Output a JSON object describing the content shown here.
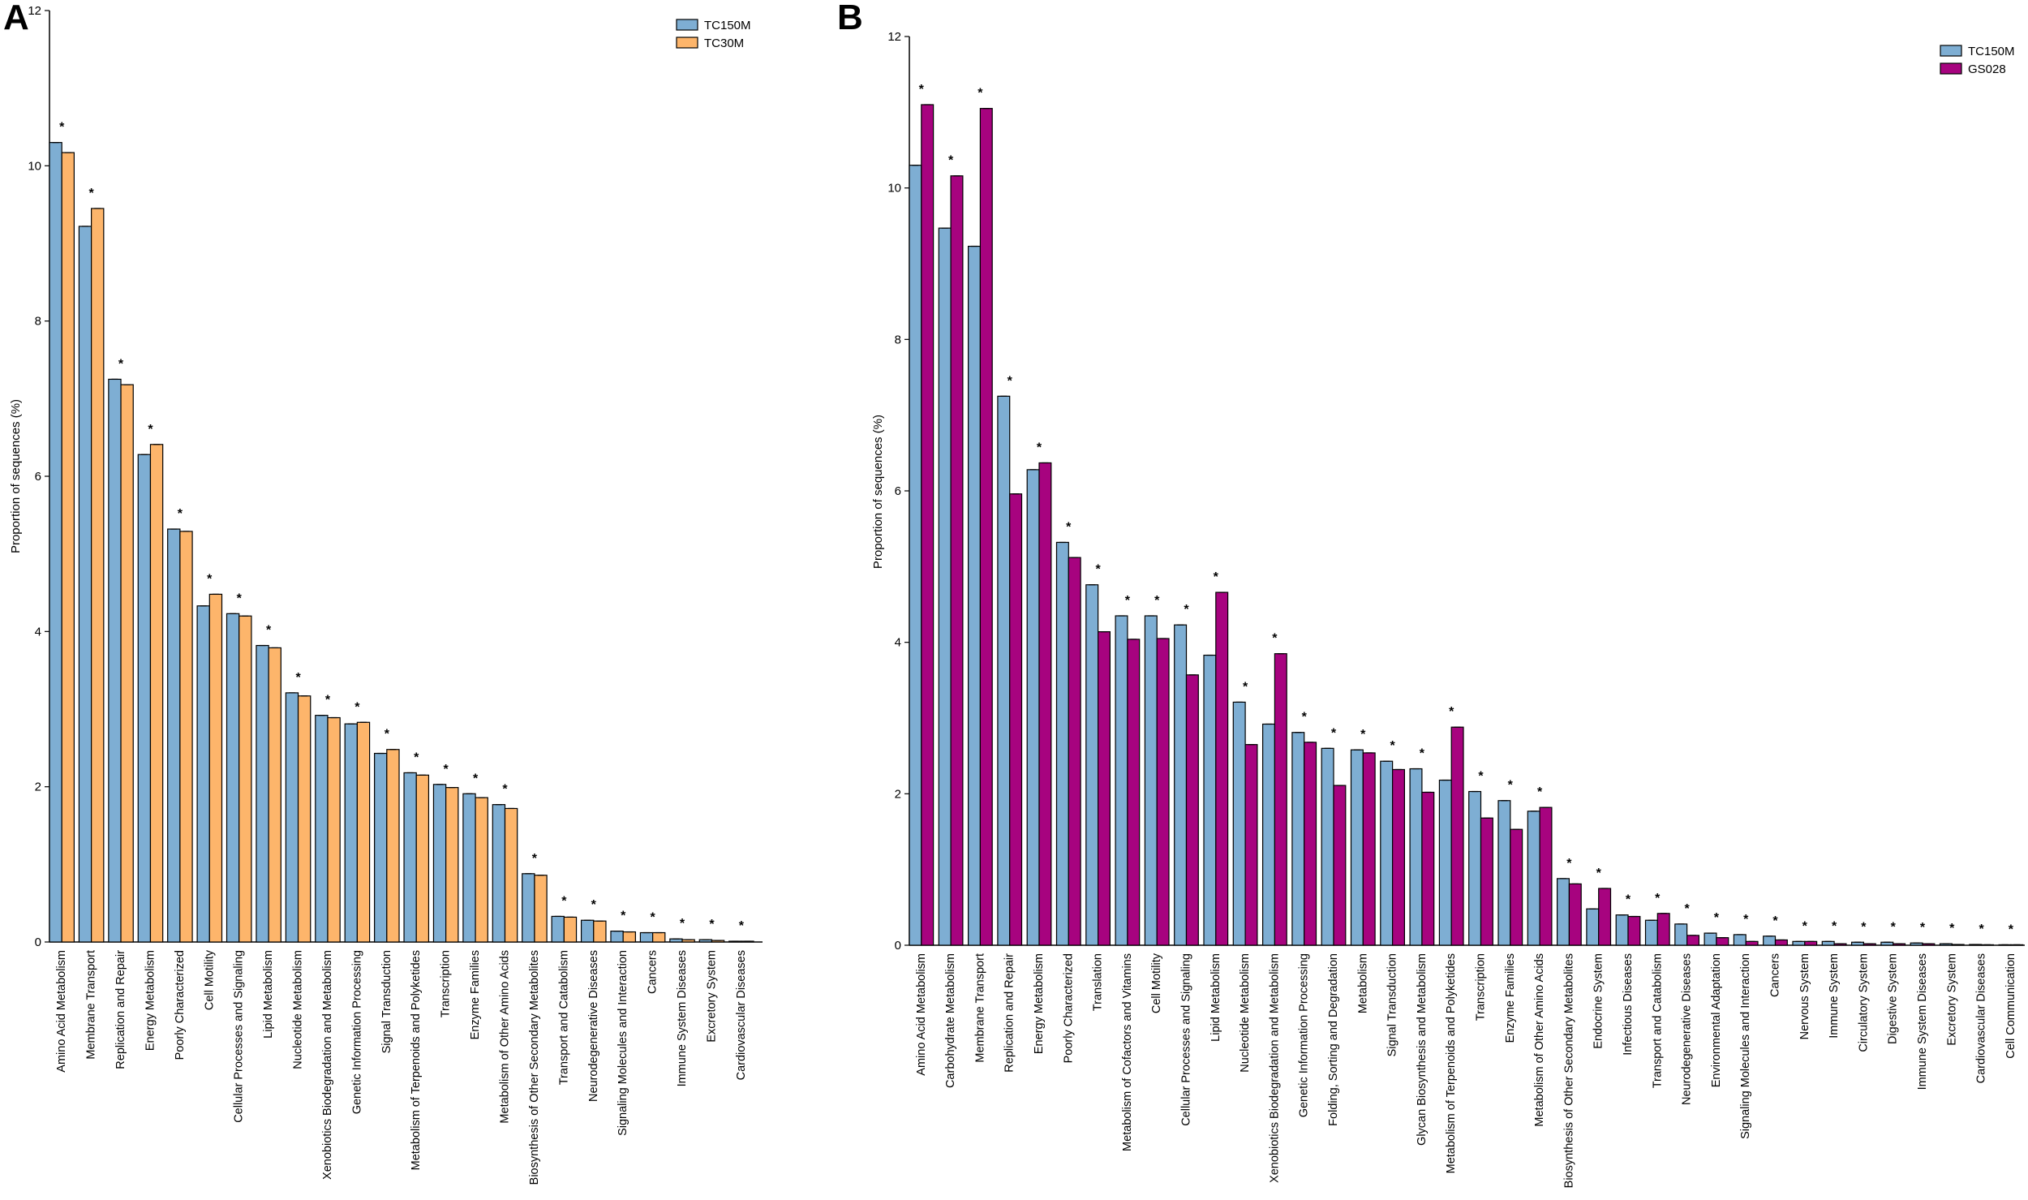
{
  "chart_data": [
    {
      "panel": "A",
      "type": "bar",
      "ylabel": "Proportion of sequences (%)",
      "ylim": [
        0,
        12
      ],
      "yticks": [
        0,
        2,
        4,
        6,
        8,
        10,
        12
      ],
      "legend_position": "top-right",
      "colors": {
        "TC150M": "#7eaed3",
        "TC30M": "#fdb56b"
      },
      "significance_mark": "*",
      "categories": [
        "Amino Acid Metabolism",
        "Membrane Transport",
        "Replication and Repair",
        "Energy Metabolism",
        "Poorly Characterized",
        "Cell Motility",
        "Cellular Processes and Signaling",
        "Lipid Metabolism",
        "Nucleotide Metabolism",
        "Xenobiotics Biodegradation and Metabolism",
        "Genetic Information Processing",
        "Signal Transduction",
        "Metabolism of Terpenoids and Polyketides",
        "Transcription",
        "Enzyme Families",
        "Metabolism of Other Amino Acids",
        "Biosynthesis of Other Secondary Metabolites",
        "Transport and Catabolism",
        "Neurodegenerative Diseases",
        "Signaling Molecules and Interaction",
        "Cancers",
        "Immune System Diseases",
        "Excretory System",
        "Cardiovascular Diseases"
      ],
      "series": [
        {
          "name": "TC150M",
          "values": [
            10.3,
            9.22,
            7.25,
            6.28,
            5.32,
            4.33,
            4.23,
            3.82,
            3.21,
            2.92,
            2.81,
            2.43,
            2.18,
            2.03,
            1.91,
            1.77,
            0.88,
            0.33,
            0.28,
            0.14,
            0.12,
            0.04,
            0.03,
            0.01
          ]
        },
        {
          "name": "TC30M",
          "values": [
            10.17,
            9.45,
            7.18,
            6.41,
            5.29,
            4.48,
            4.2,
            3.79,
            3.17,
            2.89,
            2.83,
            2.48,
            2.15,
            1.99,
            1.86,
            1.72,
            0.86,
            0.32,
            0.27,
            0.13,
            0.12,
            0.03,
            0.02,
            0.01
          ]
        }
      ],
      "significant": [
        true,
        true,
        true,
        true,
        true,
        true,
        true,
        true,
        true,
        true,
        true,
        true,
        true,
        true,
        true,
        true,
        true,
        true,
        true,
        true,
        true,
        true,
        true,
        true
      ]
    },
    {
      "panel": "B",
      "type": "bar",
      "ylabel": "Proportion of sequences (%)",
      "ylim": [
        0,
        12
      ],
      "yticks": [
        0,
        2,
        4,
        6,
        8,
        10,
        12
      ],
      "legend_position": "top-right",
      "colors": {
        "TC150M": "#7eaed3",
        "GS028": "#a7037f"
      },
      "significance_mark": "*",
      "categories": [
        "Amino Acid Metabolism",
        "Carbohydrate Metabolism",
        "Membrane Transport",
        "Replication and Repair",
        "Energy Metabolism",
        "Poorly Characterized",
        "Translation",
        "Metabolism of Cofactors and Vitamins",
        "Cell Motility",
        "Cellular Processes and Signaling",
        "Lipid Metabolism",
        "Nucleotide Metabolism",
        "Xenobiotics Biodegradation and Metabolism",
        "Genetic Information Processing",
        "Folding, Sorting and Degradation",
        "Metabolism",
        "Signal Transduction",
        "Glycan Biosynthesis and Metabolism",
        "Metabolism of Terpenoids and Polyketides",
        "Transcription",
        "Enzyme Families",
        "Metabolism of Other Amino Acids",
        "Biosynthesis of Other Secondary Metabolites",
        "Endocrine System",
        "Infectious Diseases",
        "Transport and Catabolism",
        "Neurodegenerative Diseases",
        "Environmental Adaptation",
        "Signaling Molecules and Interaction",
        "Cancers",
        "Nervous System",
        "Immune System",
        "Circulatory System",
        "Digestive System",
        "Immune System Diseases",
        "Excretory System",
        "Cardiovascular Diseases",
        "Cell Communication"
      ],
      "series": [
        {
          "name": "TC150M",
          "values": [
            10.3,
            9.47,
            9.23,
            7.25,
            6.28,
            5.32,
            4.76,
            4.35,
            4.35,
            4.23,
            3.83,
            3.21,
            2.92,
            2.81,
            2.6,
            2.58,
            2.43,
            2.33,
            2.18,
            2.03,
            1.91,
            1.77,
            0.88,
            0.48,
            0.4,
            0.33,
            0.28,
            0.16,
            0.14,
            0.12,
            0.05,
            0.05,
            0.04,
            0.04,
            0.03,
            0.02,
            0.01,
            0.005
          ]
        },
        {
          "name": "GS028",
          "values": [
            11.1,
            10.16,
            11.05,
            5.96,
            6.37,
            5.12,
            4.14,
            4.04,
            4.05,
            3.57,
            4.66,
            2.65,
            3.85,
            2.68,
            2.11,
            2.54,
            2.32,
            2.02,
            2.88,
            1.68,
            1.53,
            1.82,
            0.81,
            0.75,
            0.38,
            0.42,
            0.13,
            0.1,
            0.05,
            0.07,
            0.05,
            0.02,
            0.02,
            0.02,
            0.02,
            0.01,
            0.005,
            0.002
          ]
        }
      ],
      "significant": [
        true,
        true,
        true,
        true,
        true,
        true,
        true,
        true,
        true,
        true,
        true,
        true,
        true,
        true,
        true,
        true,
        true,
        true,
        true,
        true,
        true,
        true,
        true,
        true,
        true,
        true,
        true,
        true,
        true,
        true,
        true,
        true,
        true,
        true,
        true,
        true,
        true,
        true
      ]
    }
  ]
}
